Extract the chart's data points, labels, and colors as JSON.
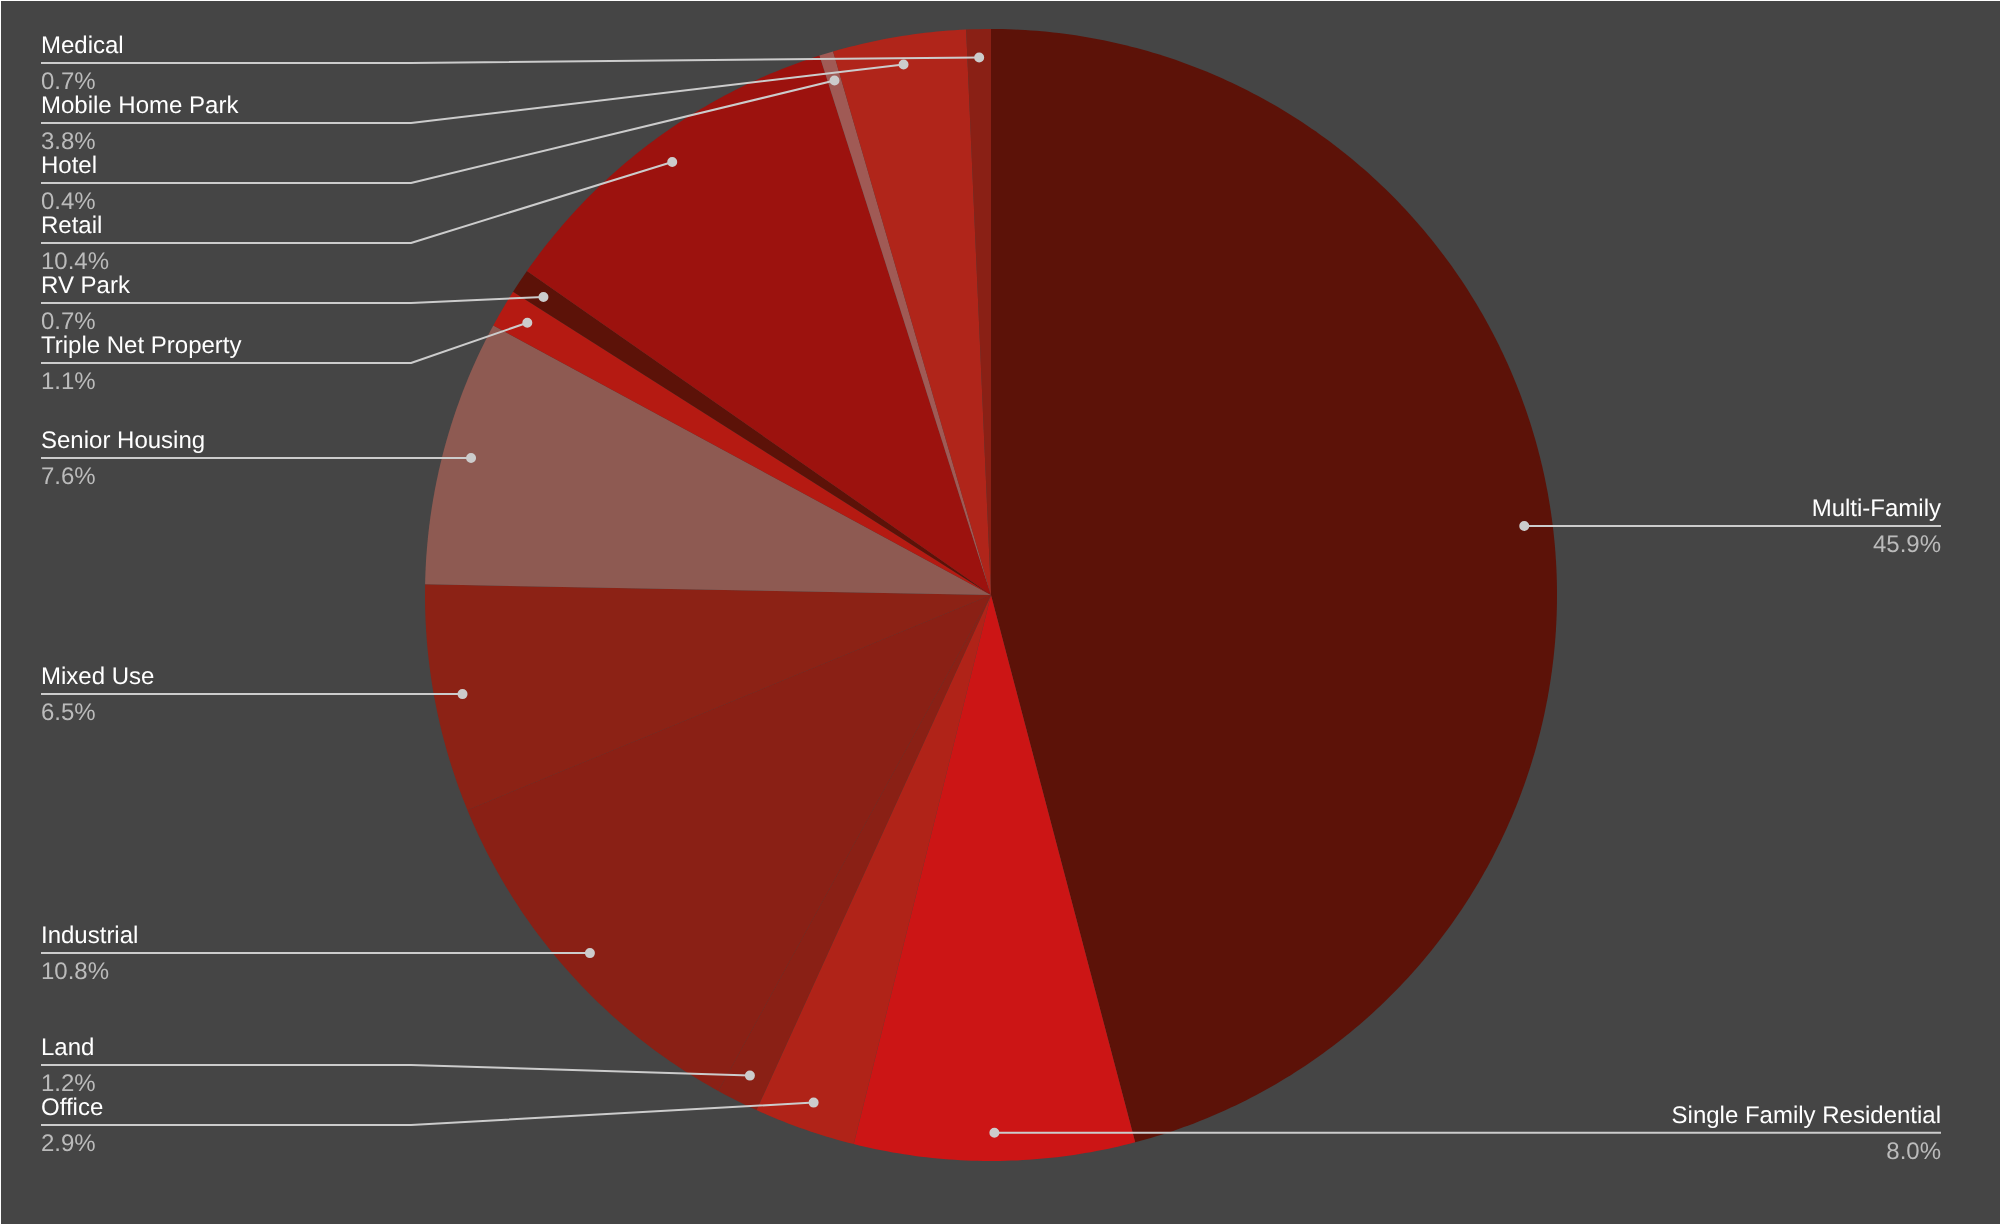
{
  "chart_data": {
    "type": "pie",
    "categories": [
      "Multi-Family",
      "Single Family Residential",
      "Office",
      "Land",
      "Industrial",
      "Mixed Use",
      "Senior Housing",
      "Triple Net Property",
      "RV Park",
      "Retail",
      "Hotel",
      "Mobile Home Park",
      "Medical"
    ],
    "values": [
      45.9,
      8.0,
      2.9,
      1.2,
      10.8,
      6.5,
      7.6,
      1.1,
      0.7,
      10.4,
      0.4,
      3.8,
      0.7
    ],
    "value_labels": [
      "45.9%",
      "8.0%",
      "2.9%",
      "1.2%",
      "10.8%",
      "6.5%",
      "7.6%",
      "1.1%",
      "0.7%",
      "10.4%",
      "0.4%",
      "3.8%",
      "0.7%"
    ],
    "colors": [
      "#5c1208",
      "#cc1515",
      "#b02318",
      "#8a2015",
      "#8a2015",
      "#8c2215",
      "#8e5a52",
      "#b51a12",
      "#5c1208",
      "#9c120e",
      "#a05a55",
      "#b0251a",
      "#8a2015"
    ]
  }
}
